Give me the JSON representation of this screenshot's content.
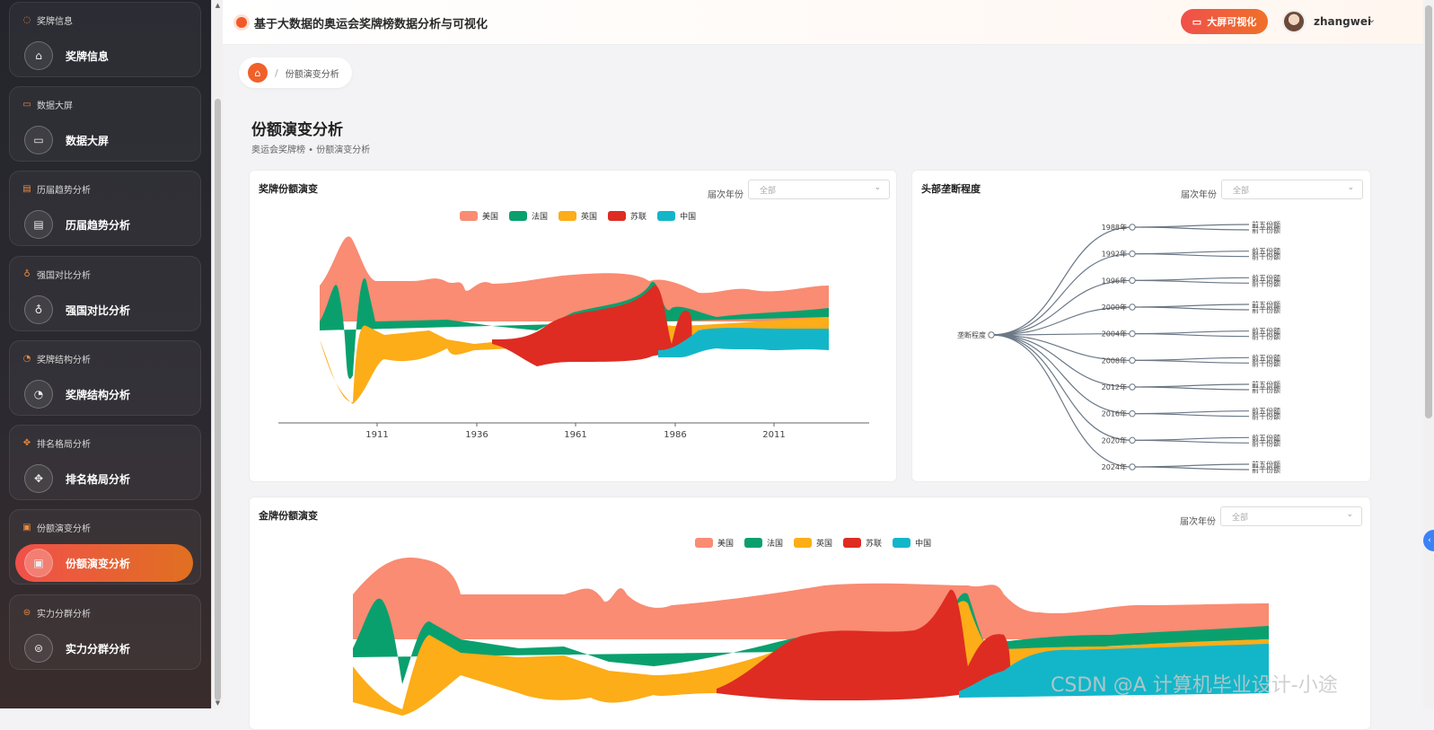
{
  "sidebar": {
    "groups": [
      {
        "header": "奖牌信息",
        "label": "奖牌信息",
        "icon": "medal-icon",
        "glyph": "⌂",
        "head_glyph": "◌"
      },
      {
        "header": "数据大屏",
        "label": "数据大屏",
        "icon": "screen-icon",
        "glyph": "▭",
        "head_glyph": "▭"
      },
      {
        "header": "历届趋势分析",
        "label": "历届趋势分析",
        "icon": "trend-icon",
        "glyph": "▤",
        "head_glyph": "▤"
      },
      {
        "header": "强国对比分析",
        "label": "强国对比分析",
        "icon": "trophy-icon",
        "glyph": "♁",
        "head_glyph": "♁"
      },
      {
        "header": "奖牌结构分析",
        "label": "奖牌结构分析",
        "icon": "pie-icon",
        "glyph": "◔",
        "head_glyph": "◔"
      },
      {
        "header": "排名格局分析",
        "label": "排名格局分析",
        "icon": "move-icon",
        "glyph": "✥",
        "head_glyph": "✥"
      },
      {
        "header": "份额演变分析",
        "label": "份额演变分析",
        "icon": "share-icon",
        "glyph": "▣",
        "head_glyph": "▣",
        "active": true
      },
      {
        "header": "实力分群分析",
        "label": "实力分群分析",
        "icon": "cluster-icon",
        "glyph": "⊜",
        "head_glyph": "⊜"
      }
    ]
  },
  "header": {
    "title": "基于大数据的奥运会奖牌榜数据分析与可视化",
    "bigscreen_label": "大屏可视化",
    "username": "zhangwei"
  },
  "breadcrumb": {
    "current": "份额演变分析"
  },
  "page": {
    "title": "份额演变分析",
    "subtitle": "奥运会奖牌榜 • 份额演变分析"
  },
  "filter": {
    "label": "届次年份",
    "value": "全部"
  },
  "colors": {
    "usa": "#f98c73",
    "france": "#0aa06e",
    "uk": "#fcad18",
    "ussr": "#de2c22",
    "china": "#13b6c9",
    "accent": "#f05a28"
  },
  "watermark": "CSDN @A 计算机毕业设计-小途",
  "chart_data": [
    {
      "type": "area",
      "title": "奖牌份额演变",
      "series": [
        {
          "name": "美国"
        },
        {
          "name": "法国"
        },
        {
          "name": "英国"
        },
        {
          "name": "苏联"
        },
        {
          "name": "中国"
        }
      ],
      "x_ticks": [
        "1911",
        "1936",
        "1961",
        "1986",
        "2011"
      ]
    },
    {
      "type": "tree",
      "title": "头部垄断程度",
      "root": "垄断程度",
      "branches": [
        "1988年",
        "1992年",
        "1996年",
        "2000年",
        "2004年",
        "2008年",
        "2012年",
        "2016年",
        "2020年",
        "2024年"
      ],
      "leaves": [
        "前五份额",
        "前十份额"
      ]
    },
    {
      "type": "area",
      "title": "金牌份额演变",
      "series": [
        {
          "name": "美国"
        },
        {
          "name": "法国"
        },
        {
          "name": "英国"
        },
        {
          "name": "苏联"
        },
        {
          "name": "中国"
        }
      ]
    }
  ]
}
